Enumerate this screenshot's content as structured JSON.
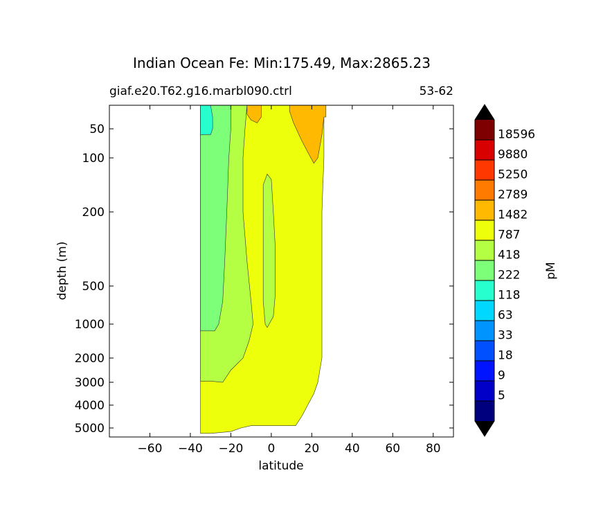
{
  "chart_data": {
    "type": "contourf",
    "title": "Indian Ocean Fe: Min:175.49, Max:2865.23",
    "subtitle_left": "giaf.e20.T62.g16.marbl090.ctrl",
    "subtitle_right": "53-62",
    "xlabel": "latitude",
    "ylabel": "depth (m)",
    "xlim": [
      -80,
      90
    ],
    "ylim": [
      5500,
      10
    ],
    "y_scale": "piecewise",
    "x_ticks": [
      {
        "value": -60,
        "label": "−60"
      },
      {
        "value": -40,
        "label": "−40"
      },
      {
        "value": -20,
        "label": "−20"
      },
      {
        "value": 0,
        "label": "0"
      },
      {
        "value": 20,
        "label": "20"
      },
      {
        "value": 40,
        "label": "40"
      },
      {
        "value": 60,
        "label": "60"
      },
      {
        "value": 80,
        "label": "80"
      }
    ],
    "y_ticks": [
      {
        "value": 50,
        "label": "50"
      },
      {
        "value": 100,
        "label": "100"
      },
      {
        "value": 200,
        "label": "200"
      },
      {
        "value": 500,
        "label": "500"
      },
      {
        "value": 1000,
        "label": "1000"
      },
      {
        "value": 2000,
        "label": "2000"
      },
      {
        "value": 3000,
        "label": "3000"
      },
      {
        "value": 4000,
        "label": "4000"
      },
      {
        "value": 5000,
        "label": "5000"
      }
    ],
    "colorbar": {
      "label": "pM",
      "extend": "both",
      "under_color": "#000000",
      "over_color": "#000000",
      "levels": [
        "5",
        "9",
        "18",
        "33",
        "63",
        "118",
        "222",
        "418",
        "787",
        "1482",
        "2789",
        "5250",
        "9880",
        "18596"
      ],
      "colors": [
        "#00007f",
        "#0000c8",
        "#0014ff",
        "#0050ff",
        "#0094ff",
        "#00d8ff",
        "#28ffce",
        "#7dff7a",
        "#b4ff43",
        "#edff0a",
        "#ffb900",
        "#ff7b00",
        "#ff3700",
        "#d80000",
        "#7f0000"
      ]
    },
    "regions": [
      {
        "color": "#edff0a",
        "points": [
          [
            -35,
            10
          ],
          [
            26,
            10
          ],
          [
            26,
            50
          ],
          [
            26,
            100
          ],
          [
            25,
            200
          ],
          [
            25,
            2000
          ],
          [
            24,
            2500
          ],
          [
            23,
            3000
          ],
          [
            21,
            3500
          ],
          [
            18,
            4000
          ],
          [
            15,
            4500
          ],
          [
            12,
            4900
          ],
          [
            -10,
            4900
          ],
          [
            -15,
            5000
          ],
          [
            -20,
            5200
          ],
          [
            -30,
            5300
          ],
          [
            -35,
            5300
          ]
        ]
      },
      {
        "color": "#b4ff43",
        "points": [
          [
            -35,
            10
          ],
          [
            -12,
            10
          ],
          [
            -13,
            50
          ],
          [
            -14,
            100
          ],
          [
            -14,
            200
          ],
          [
            -12,
            400
          ],
          [
            -10,
            700
          ],
          [
            -9,
            1000
          ],
          [
            -11,
            1500
          ],
          [
            -14,
            2000
          ],
          [
            -20,
            2500
          ],
          [
            -24,
            3000
          ],
          [
            -30,
            2950
          ],
          [
            -35,
            2950
          ]
        ]
      },
      {
        "color": "#b4ff43",
        "points": [
          [
            -4,
            150
          ],
          [
            -2,
            130
          ],
          [
            0,
            140
          ],
          [
            1,
            200
          ],
          [
            2,
            350
          ],
          [
            2,
            600
          ],
          [
            1,
            900
          ],
          [
            -2,
            1100
          ],
          [
            -3,
            1000
          ],
          [
            -4,
            700
          ],
          [
            -4,
            400
          ]
        ]
      },
      {
        "color": "#7dff7a",
        "points": [
          [
            -35,
            10
          ],
          [
            -20,
            10
          ],
          [
            -20,
            50
          ],
          [
            -21,
            100
          ],
          [
            -22,
            200
          ],
          [
            -23,
            400
          ],
          [
            -24,
            700
          ],
          [
            -26,
            1000
          ],
          [
            -28,
            1200
          ],
          [
            -35,
            1200
          ]
        ]
      },
      {
        "color": "#28ffce",
        "points": [
          [
            -35,
            10
          ],
          [
            -30,
            10
          ],
          [
            -29,
            30
          ],
          [
            -29,
            50
          ],
          [
            -30,
            60
          ],
          [
            -35,
            60
          ]
        ]
      },
      {
        "color": "#ffb900",
        "points": [
          [
            9,
            10
          ],
          [
            27,
            10
          ],
          [
            27,
            30
          ],
          [
            26,
            30
          ],
          [
            25,
            60
          ],
          [
            23,
            100
          ],
          [
            21,
            110
          ],
          [
            18,
            90
          ],
          [
            15,
            70
          ],
          [
            11,
            40
          ],
          [
            9,
            20
          ]
        ]
      },
      {
        "color": "#ffb900",
        "points": [
          [
            -12,
            10
          ],
          [
            -5,
            10
          ],
          [
            -5,
            30
          ],
          [
            -7,
            40
          ],
          [
            -10,
            35
          ],
          [
            -12,
            25
          ]
        ]
      }
    ]
  }
}
